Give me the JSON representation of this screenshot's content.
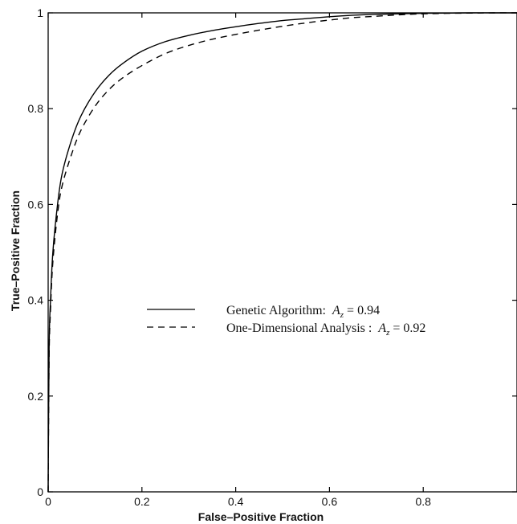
{
  "chart_data": {
    "type": "line",
    "title": "",
    "xlabel": "False–Positive Fraction",
    "ylabel": "True–Positive Fraction",
    "xlim": [
      0,
      1
    ],
    "ylim": [
      0,
      1
    ],
    "xticks": [
      "0",
      "0.2",
      "0.4",
      "0.6",
      "0.8"
    ],
    "yticks": [
      "0",
      "0.2",
      "0.4",
      "0.6",
      "0.8",
      "1"
    ],
    "grid": false,
    "legend_position": "center-right",
    "series": [
      {
        "name": "Genetic Algorithm: Az = 0.94",
        "legend_prefix": "Genetic Algorithm:",
        "legend_var": "A",
        "legend_sub": "z",
        "legend_value": "= 0.94",
        "style": "solid",
        "color": "#000000",
        "x": [
          0,
          0.002,
          0.005,
          0.01,
          0.02,
          0.03,
          0.05,
          0.07,
          0.1,
          0.13,
          0.16,
          0.2,
          0.25,
          0.3,
          0.35,
          0.4,
          0.45,
          0.5,
          0.55,
          0.6,
          0.65,
          0.7,
          0.75,
          0.8,
          0.85,
          0.9,
          0.95,
          1.0
        ],
        "y": [
          0,
          0.3,
          0.4,
          0.5,
          0.6,
          0.665,
          0.735,
          0.785,
          0.835,
          0.87,
          0.895,
          0.92,
          0.94,
          0.953,
          0.963,
          0.971,
          0.978,
          0.984,
          0.988,
          0.992,
          0.995,
          0.997,
          0.998,
          0.999,
          0.9995,
          1.0,
          1.0,
          1.0
        ]
      },
      {
        "name": "One-Dimensional Analysis : Az = 0.92",
        "legend_prefix": "One-Dimensional Analysis :",
        "legend_var": "A",
        "legend_sub": "z",
        "legend_value": "= 0.92",
        "style": "dashed",
        "color": "#000000",
        "x": [
          0,
          0.002,
          0.005,
          0.01,
          0.02,
          0.03,
          0.05,
          0.07,
          0.1,
          0.13,
          0.16,
          0.2,
          0.25,
          0.3,
          0.35,
          0.4,
          0.45,
          0.5,
          0.55,
          0.6,
          0.65,
          0.7,
          0.75,
          0.8,
          0.85,
          0.9,
          0.95,
          1.0
        ],
        "y": [
          0,
          0.28,
          0.38,
          0.48,
          0.58,
          0.64,
          0.705,
          0.755,
          0.805,
          0.84,
          0.865,
          0.89,
          0.915,
          0.932,
          0.945,
          0.955,
          0.964,
          0.972,
          0.979,
          0.985,
          0.99,
          0.993,
          0.996,
          0.998,
          0.999,
          0.9995,
          1.0,
          1.0
        ]
      }
    ]
  }
}
